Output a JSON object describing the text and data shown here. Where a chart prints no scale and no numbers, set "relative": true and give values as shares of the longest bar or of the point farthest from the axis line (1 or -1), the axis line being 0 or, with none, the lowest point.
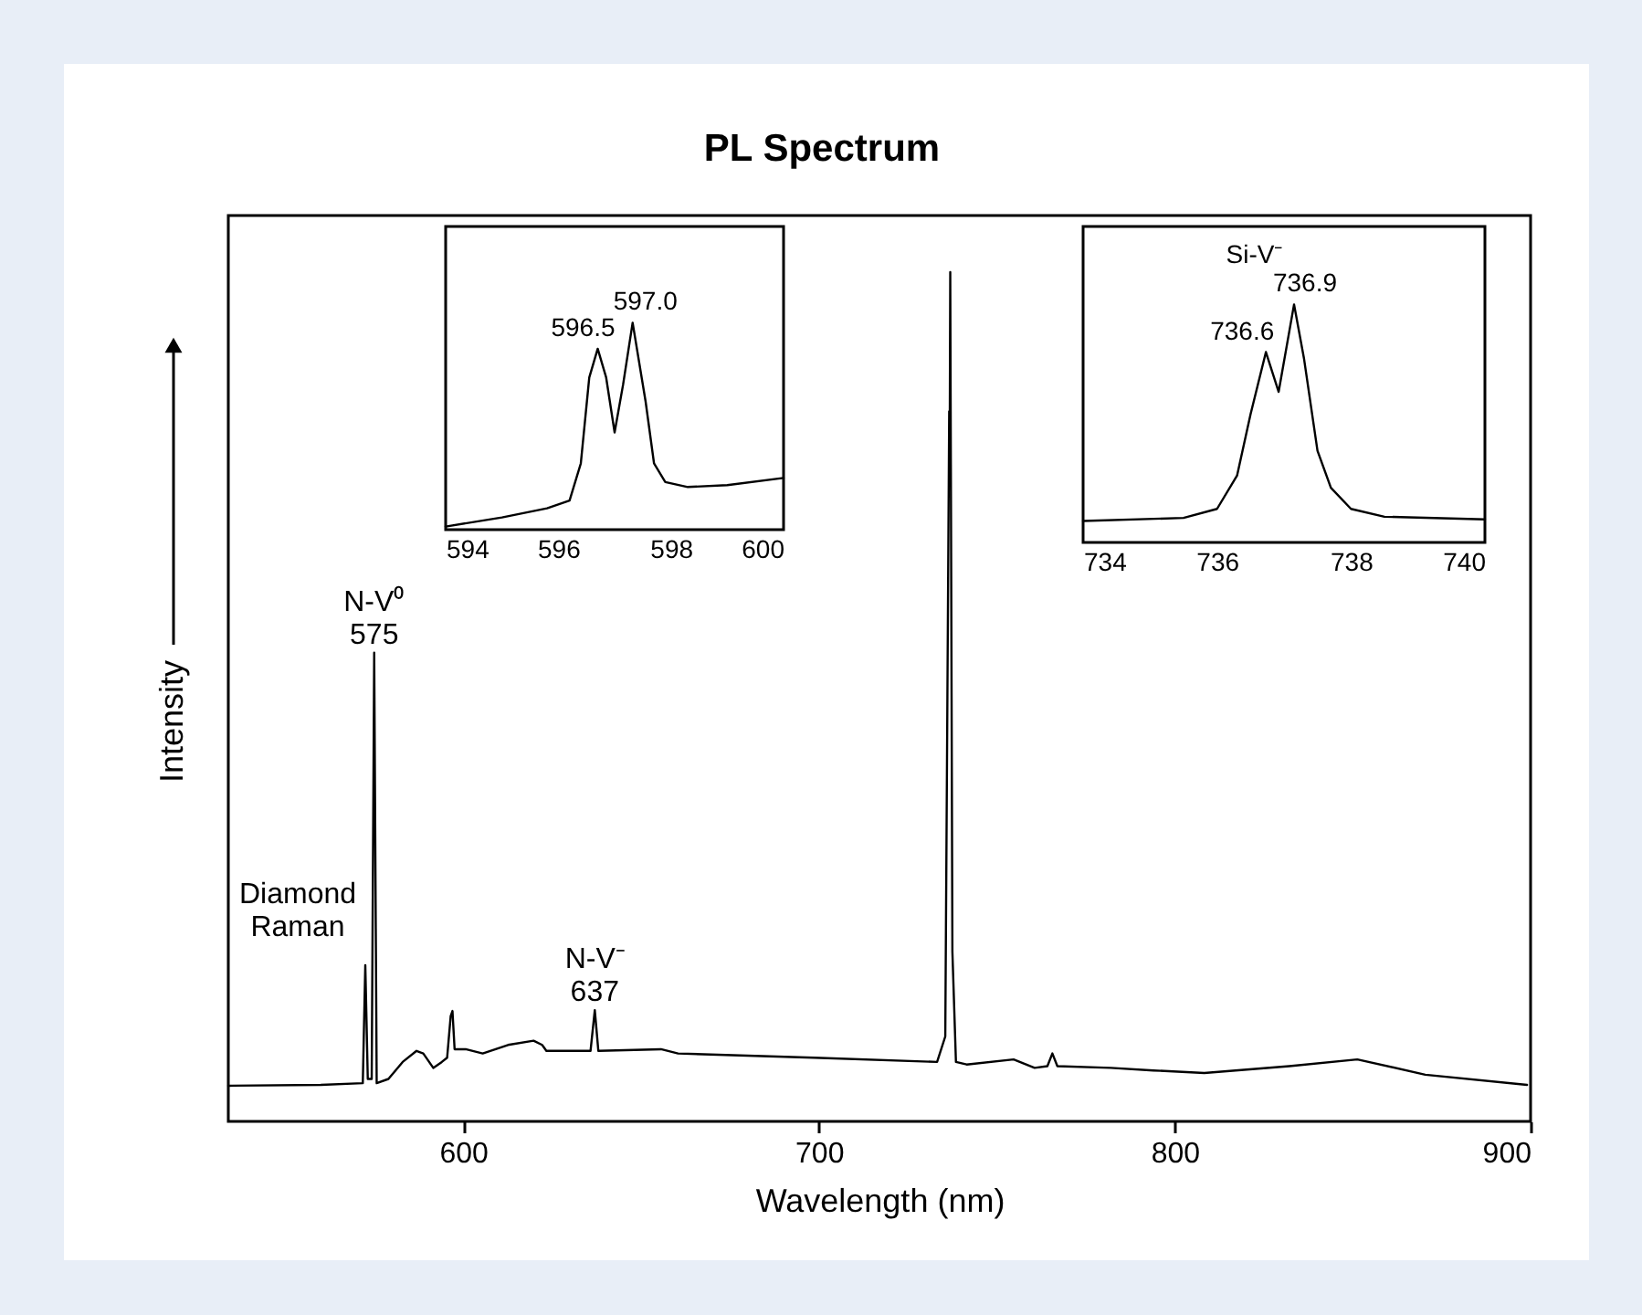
{
  "chart_data": [
    {
      "type": "line",
      "title": "PL Spectrum",
      "xlabel": "Wavelength (nm)",
      "ylabel": "Intensity",
      "relative": true,
      "xlim": [
        534,
        900
      ],
      "xticks": [
        600,
        700,
        800,
        900
      ],
      "x": [
        534,
        560,
        571.8,
        572.5,
        573.2,
        574.3,
        575,
        575.7,
        579,
        583,
        586.9,
        588.8,
        591.6,
        594,
        595.5,
        596.5,
        597,
        597.6,
        600.7,
        605.5,
        612.6,
        619.8,
        622.2,
        623.4,
        635.8,
        637,
        638,
        655.6,
        660.4,
        698.6,
        733.2,
        735.5,
        736.6,
        736.75,
        736.9,
        737.5,
        738.5,
        741.5,
        754.7,
        760.6,
        764.2,
        765.6,
        767,
        782,
        794,
        808.3,
        832.2,
        851.3,
        870.4,
        899
      ],
      "series": [
        {
          "color": "#000000",
          "values": [
            0.042,
            0.043,
            0.045,
            0.184,
            0.05,
            0.05,
            0.552,
            0.045,
            0.05,
            0.07,
            0.083,
            0.08,
            0.063,
            0.07,
            0.075,
            0.124,
            0.13,
            0.085,
            0.085,
            0.08,
            0.09,
            0.095,
            0.09,
            0.083,
            0.083,
            0.131,
            0.083,
            0.085,
            0.08,
            0.075,
            0.07,
            0.1,
            0.836,
            0.8,
            1.0,
            0.2,
            0.07,
            0.067,
            0.073,
            0.063,
            0.065,
            0.08,
            0.065,
            0.063,
            0.06,
            0.057,
            0.065,
            0.073,
            0.055,
            0.043
          ]
        }
      ],
      "annotations": [
        {
          "text": "Diamond\nRaman",
          "x": 572.5,
          "y": 0.184
        },
        {
          "text": "N-V⁰\n575",
          "x": 575,
          "y": 0.552
        },
        {
          "text": "N-V⁻\n637",
          "x": 637,
          "y": 0.131
        }
      ]
    },
    {
      "type": "line",
      "relative": true,
      "xlim": [
        594,
        600
      ],
      "xticks": [
        594,
        596,
        598,
        600
      ],
      "x": [
        594,
        595,
        595.8,
        596.2,
        596.4,
        596.55,
        596.7,
        596.85,
        597.0,
        597.15,
        597.32,
        597.55,
        597.7,
        597.9,
        598.3,
        599,
        600
      ],
      "series": [
        {
          "color": "#000000",
          "values": [
            0.015,
            0.059,
            0.103,
            0.141,
            0.32,
            0.735,
            0.874,
            0.735,
            0.47,
            0.7,
            1.0,
            0.62,
            0.32,
            0.23,
            0.206,
            0.215,
            0.25
          ]
        }
      ],
      "annotations": [
        {
          "text": "596.5",
          "x": 596.7,
          "y": 0.874
        },
        {
          "text": "597.0",
          "x": 597.32,
          "y": 1.0
        }
      ]
    },
    {
      "type": "line",
      "title": "Si-V⁻",
      "relative": true,
      "xlim": [
        734,
        740
      ],
      "xticks": [
        734,
        736,
        738,
        740
      ],
      "x": [
        734,
        735.5,
        736,
        736.3,
        736.5,
        736.73,
        736.92,
        737.15,
        737.3,
        737.5,
        737.7,
        738,
        738.5,
        740
      ],
      "series": [
        {
          "color": "#000000",
          "values": [
            0.09,
            0.103,
            0.141,
            0.282,
            0.538,
            0.8,
            0.633,
            1.0,
            0.77,
            0.385,
            0.23,
            0.141,
            0.108,
            0.097
          ]
        }
      ],
      "annotations": [
        {
          "text": "736.6",
          "x": 736.73,
          "y": 0.8
        },
        {
          "text": "736.9",
          "x": 737.15,
          "y": 1.0
        }
      ]
    }
  ]
}
